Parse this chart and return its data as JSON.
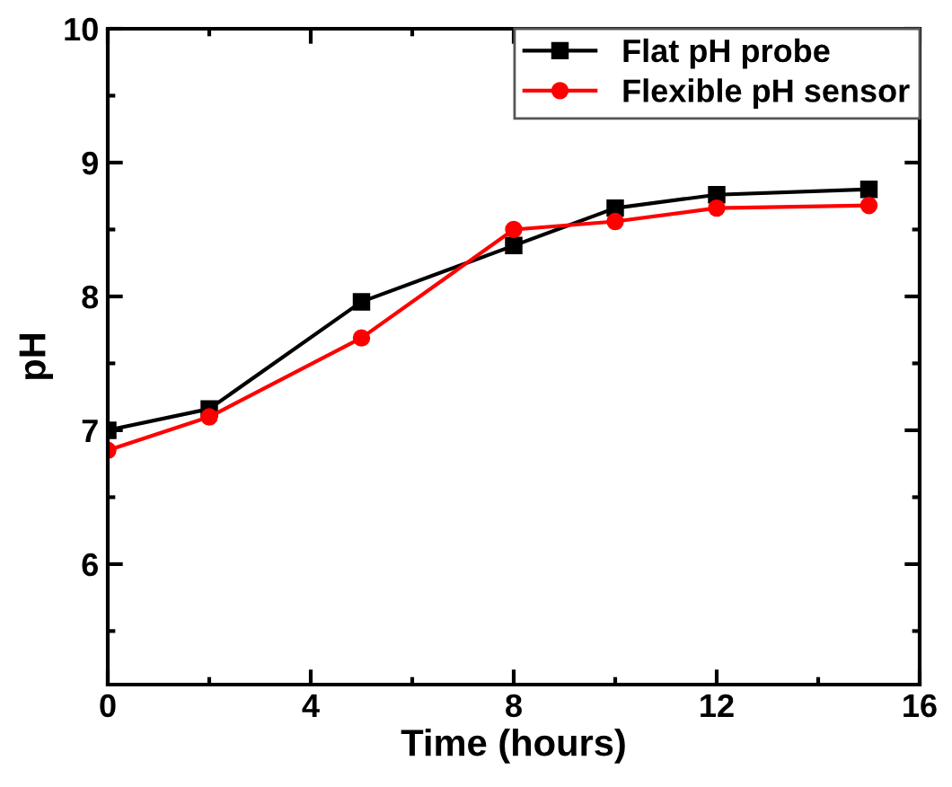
{
  "chart_data": {
    "type": "line",
    "xlabel": "Time (hours)",
    "ylabel": "pH",
    "x": [
      0,
      2,
      5,
      8,
      10,
      12,
      15
    ],
    "series": [
      {
        "name": "Flat pH probe",
        "color": "#000000",
        "marker": "square",
        "values": [
          7.0,
          7.16,
          7.96,
          8.38,
          8.66,
          8.76,
          8.8
        ]
      },
      {
        "name": "Flexible pH sensor",
        "color": "#ff0000",
        "marker": "circle",
        "values": [
          6.85,
          7.1,
          7.69,
          8.5,
          8.56,
          8.66,
          8.68
        ]
      }
    ],
    "xlim": [
      0,
      16
    ],
    "xticks": [
      0,
      4,
      8,
      12,
      16
    ],
    "ylim": [
      5.1,
      10
    ],
    "yticks": [
      6,
      7,
      8,
      9,
      10
    ],
    "grid": false,
    "legend": "top right",
    "line_style": "solid"
  }
}
